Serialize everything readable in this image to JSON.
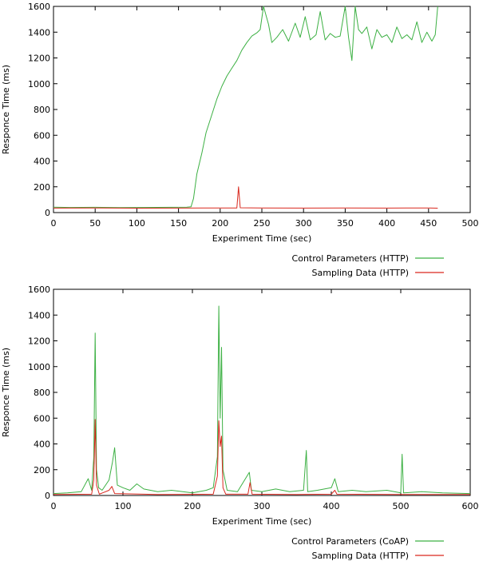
{
  "colors": {
    "green": "#3cb043",
    "red": "#d9281e"
  },
  "chart_data": [
    {
      "type": "line",
      "title": "",
      "xlabel": "Experiment Time (sec)",
      "ylabel": "Responce Time (ms)",
      "xlim": [
        0,
        500
      ],
      "ylim": [
        0,
        1600
      ],
      "xticks": [
        "0",
        "50",
        "100",
        "150",
        "200",
        "250",
        "300",
        "350",
        "400",
        "450",
        "500"
      ],
      "yticks": [
        "0",
        "200",
        "400",
        "600",
        "800",
        "1000",
        "1200",
        "1400",
        "1600"
      ],
      "legend_position": "below-right",
      "series": [
        {
          "name": "Control Parameters (HTTP)",
          "color": "#3cb043",
          "points": [
            [
              0,
              42
            ],
            [
              20,
              40
            ],
            [
              50,
              41
            ],
            [
              80,
              39
            ],
            [
              110,
              40
            ],
            [
              140,
              41
            ],
            [
              160,
              42
            ],
            [
              165,
              45
            ],
            [
              168,
              110
            ],
            [
              172,
              300
            ],
            [
              178,
              460
            ],
            [
              183,
              620
            ],
            [
              190,
              760
            ],
            [
              196,
              880
            ],
            [
              202,
              980
            ],
            [
              208,
              1060
            ],
            [
              214,
              1120
            ],
            [
              220,
              1180
            ],
            [
              226,
              1260
            ],
            [
              232,
              1320
            ],
            [
              238,
              1370
            ],
            [
              244,
              1395
            ],
            [
              248,
              1420
            ],
            [
              252,
              1600
            ],
            [
              258,
              1460
            ],
            [
              262,
              1320
            ],
            [
              268,
              1360
            ],
            [
              275,
              1420
            ],
            [
              282,
              1330
            ],
            [
              290,
              1470
            ],
            [
              296,
              1360
            ],
            [
              302,
              1520
            ],
            [
              308,
              1340
            ],
            [
              315,
              1380
            ],
            [
              320,
              1560
            ],
            [
              326,
              1340
            ],
            [
              332,
              1390
            ],
            [
              338,
              1360
            ],
            [
              344,
              1370
            ],
            [
              350,
              1600
            ],
            [
              354,
              1360
            ],
            [
              358,
              1180
            ],
            [
              362,
              1600
            ],
            [
              366,
              1420
            ],
            [
              370,
              1390
            ],
            [
              376,
              1440
            ],
            [
              382,
              1270
            ],
            [
              388,
              1420
            ],
            [
              394,
              1360
            ],
            [
              400,
              1380
            ],
            [
              406,
              1320
            ],
            [
              412,
              1440
            ],
            [
              418,
              1350
            ],
            [
              424,
              1380
            ],
            [
              430,
              1340
            ],
            [
              436,
              1480
            ],
            [
              442,
              1320
            ],
            [
              448,
              1400
            ],
            [
              454,
              1330
            ],
            [
              458,
              1380
            ],
            [
              461,
              1600
            ]
          ]
        },
        {
          "name": "Sampling Data (HTTP)",
          "color": "#d9281e",
          "points": [
            [
              0,
              35
            ],
            [
              50,
              36
            ],
            [
              100,
              34
            ],
            [
              150,
              35
            ],
            [
              200,
              36
            ],
            [
              220,
              36
            ],
            [
              222,
              200
            ],
            [
              224,
              37
            ],
            [
              250,
              36
            ],
            [
              300,
              35
            ],
            [
              350,
              36
            ],
            [
              400,
              35
            ],
            [
              450,
              36
            ],
            [
              461,
              34
            ]
          ]
        }
      ]
    },
    {
      "type": "line",
      "title": "",
      "xlabel": "Experiment Time (sec)",
      "ylabel": "Responce Time (ms)",
      "xlim": [
        0,
        600
      ],
      "ylim": [
        0,
        1600
      ],
      "xticks": [
        "0",
        "100",
        "200",
        "300",
        "400",
        "500",
        "600"
      ],
      "yticks": [
        "0",
        "200",
        "400",
        "600",
        "800",
        "1000",
        "1200",
        "1400",
        "1600"
      ],
      "legend_position": "below-right",
      "series": [
        {
          "name": "Control Parameters (CoAP)",
          "color": "#3cb043",
          "points": [
            [
              0,
              15
            ],
            [
              20,
              20
            ],
            [
              40,
              30
            ],
            [
              50,
              130
            ],
            [
              55,
              40
            ],
            [
              58,
              300
            ],
            [
              60,
              1260
            ],
            [
              62,
              200
            ],
            [
              65,
              60
            ],
            [
              70,
              40
            ],
            [
              80,
              120
            ],
            [
              85,
              260
            ],
            [
              88,
              370
            ],
            [
              92,
              80
            ],
            [
              100,
              60
            ],
            [
              110,
              40
            ],
            [
              120,
              90
            ],
            [
              130,
              50
            ],
            [
              150,
              30
            ],
            [
              170,
              40
            ],
            [
              200,
              20
            ],
            [
              220,
              40
            ],
            [
              230,
              60
            ],
            [
              236,
              300
            ],
            [
              238,
              1470
            ],
            [
              240,
              600
            ],
            [
              242,
              1150
            ],
            [
              244,
              200
            ],
            [
              250,
              40
            ],
            [
              265,
              30
            ],
            [
              282,
              180
            ],
            [
              285,
              40
            ],
            [
              300,
              30
            ],
            [
              320,
              50
            ],
            [
              340,
              30
            ],
            [
              360,
              40
            ],
            [
              364,
              350
            ],
            [
              366,
              30
            ],
            [
              380,
              40
            ],
            [
              400,
              60
            ],
            [
              405,
              130
            ],
            [
              410,
              30
            ],
            [
              430,
              40
            ],
            [
              450,
              30
            ],
            [
              480,
              40
            ],
            [
              500,
              20
            ],
            [
              502,
              320
            ],
            [
              504,
              20
            ],
            [
              530,
              30
            ],
            [
              560,
              20
            ],
            [
              600,
              15
            ]
          ]
        },
        {
          "name": "Sampling Data (HTTP)",
          "color": "#d9281e",
          "points": [
            [
              0,
              8
            ],
            [
              55,
              10
            ],
            [
              58,
              120
            ],
            [
              60,
              590
            ],
            [
              62,
              80
            ],
            [
              66,
              10
            ],
            [
              80,
              40
            ],
            [
              84,
              70
            ],
            [
              88,
              15
            ],
            [
              150,
              8
            ],
            [
              230,
              10
            ],
            [
              236,
              150
            ],
            [
              238,
              580
            ],
            [
              240,
              380
            ],
            [
              242,
              460
            ],
            [
              244,
              60
            ],
            [
              248,
              10
            ],
            [
              280,
              10
            ],
            [
              283,
              100
            ],
            [
              286,
              10
            ],
            [
              350,
              8
            ],
            [
              400,
              10
            ],
            [
              405,
              40
            ],
            [
              408,
              10
            ],
            [
              500,
              8
            ],
            [
              600,
              8
            ]
          ]
        }
      ]
    }
  ]
}
